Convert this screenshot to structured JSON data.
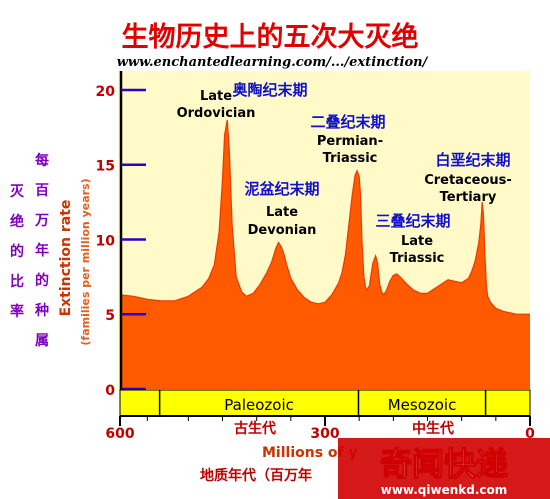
{
  "header": {
    "title": "生物历史上的五次大灭绝",
    "url": "www.enchantedlearning.com/.../extinction/"
  },
  "chart_data": {
    "type": "area",
    "x_unit": "Millions of years ago",
    "xlim": [
      600,
      0
    ],
    "ylim": [
      0,
      21
    ],
    "x_ticks": [
      600,
      300,
      0
    ],
    "y_ticks": [
      0,
      5,
      10,
      15,
      20
    ],
    "fill_color": "#ff5a00",
    "background_color": "#fffac8",
    "series": [
      {
        "x": [
          600,
          580,
          560,
          540,
          520,
          500,
          480,
          470,
          462,
          455,
          450,
          447,
          443,
          440,
          436,
          430,
          422,
          415,
          405,
          395,
          385,
          378,
          372,
          368,
          364,
          360,
          356,
          350,
          340,
          330,
          320,
          310,
          300,
          290,
          280,
          275,
          270,
          265,
          260,
          256,
          253,
          250,
          248,
          246,
          243,
          240,
          235,
          230,
          226,
          223,
          220,
          217,
          214,
          210,
          205,
          200,
          195,
          190,
          180,
          170,
          160,
          150,
          140,
          130,
          120,
          110,
          100,
          90,
          85,
          80,
          75,
          72,
          70,
          68,
          66,
          64,
          62,
          58,
          50,
          40,
          30,
          20,
          10,
          0
        ],
        "y": [
          6.3,
          6.2,
          6.0,
          5.9,
          5.9,
          6.2,
          6.8,
          7.4,
          8.3,
          10.5,
          14.0,
          17.0,
          18.0,
          16.0,
          11.0,
          7.5,
          6.5,
          6.2,
          6.4,
          7.0,
          7.8,
          8.5,
          9.4,
          9.8,
          9.5,
          9.0,
          8.3,
          7.4,
          6.6,
          6.1,
          5.8,
          5.7,
          5.8,
          6.3,
          7.1,
          7.8,
          9.0,
          11.0,
          13.0,
          14.3,
          14.6,
          14.2,
          13.0,
          10.0,
          7.5,
          6.6,
          6.9,
          8.4,
          8.9,
          8.4,
          7.0,
          6.5,
          6.3,
          6.6,
          7.2,
          7.6,
          7.7,
          7.5,
          7.0,
          6.6,
          6.4,
          6.4,
          6.7,
          7.0,
          7.3,
          7.2,
          7.1,
          7.4,
          7.9,
          8.6,
          9.8,
          11.0,
          12.5,
          11.6,
          9.0,
          7.0,
          6.2,
          5.8,
          5.4,
          5.2,
          5.1,
          5.0,
          5.0,
          5.0
        ]
      }
    ],
    "y_label": {
      "en": "Extinction rate",
      "en_sub": "(families per million years)",
      "zh_col1": "灭绝的比率",
      "zh_col2": "每百万年的种属"
    },
    "x_label": {
      "en": "Millions of y",
      "zh": "地质年代（百万年"
    },
    "eras": [
      {
        "label": "Paleozoic",
        "start": 542,
        "end": 251
      },
      {
        "label": "Mesozoic",
        "start": 251,
        "end": 65
      }
    ],
    "era_zh": [
      "古生代",
      "中生代"
    ],
    "era_bar_color": "#ffff00",
    "events": [
      {
        "en": [
          "Late",
          "Ordovician"
        ],
        "zh": "奥陶纪末期",
        "x": 445
      },
      {
        "en": [
          "Late",
          "Devonian"
        ],
        "zh": "泥盆纪末期",
        "x": 372
      },
      {
        "en": [
          "Permian-",
          "Triassic"
        ],
        "zh": "二叠纪末期",
        "x": 252
      },
      {
        "en": [
          "Late",
          "Triassic"
        ],
        "zh": "三叠纪末期",
        "x": 201
      },
      {
        "en": [
          "Cretaceous-",
          "Tertiary"
        ],
        "zh": "白垩纪末期",
        "x": 66
      }
    ]
  },
  "watermark": {
    "text": "奇闻快递",
    "url": "www.qiwenkd.com",
    "color": "#d00000"
  }
}
